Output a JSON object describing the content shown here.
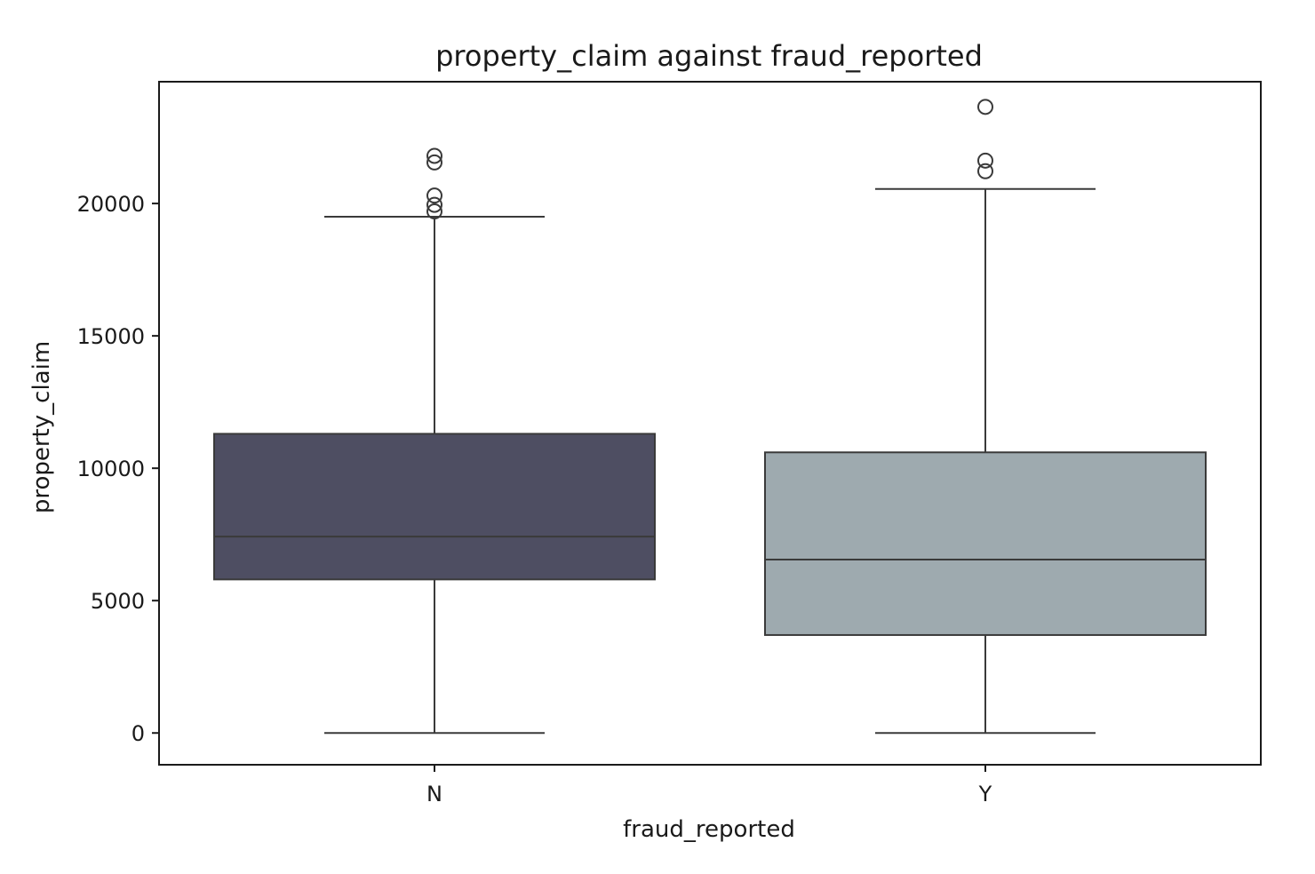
{
  "chart_data": {
    "type": "boxplot",
    "title": "property_claim against fraud_reported",
    "xlabel": "fraud_reported",
    "ylabel": "property_claim",
    "ylim": [
      -1200,
      24600
    ],
    "yticks": [
      0,
      5000,
      10000,
      15000,
      20000
    ],
    "grid": false,
    "categories": [
      "N",
      "Y"
    ],
    "series": [
      {
        "category": "N",
        "color": "#4e4e62",
        "whisker_low": 0,
        "q1": 5800,
        "median": 7420,
        "q3": 11300,
        "whisker_high": 19500,
        "outliers": [
          21800,
          21550,
          20300,
          19950,
          19700
        ]
      },
      {
        "category": "Y",
        "color": "#9eaaaf",
        "whisker_low": 0,
        "q1": 3700,
        "median": 6550,
        "q3": 10600,
        "whisker_high": 20550,
        "outliers": [
          23650,
          21620,
          21220
        ]
      }
    ]
  }
}
